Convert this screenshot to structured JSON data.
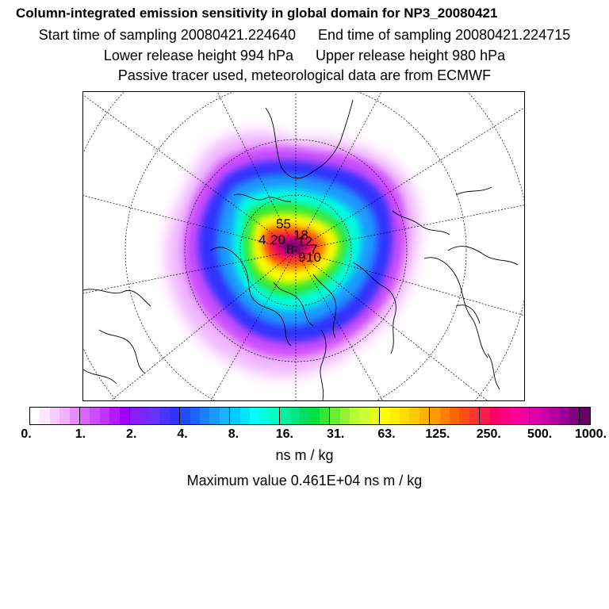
{
  "header": {
    "title": "Column-integrated emission sensitivity in global domain for NP3_20080421",
    "start_label": "Start time of sampling 20080421.224640",
    "end_label": "End time of sampling 20080421.224715",
    "lower_label": "Lower release height  994 hPa",
    "upper_label": "Upper release height  980 hPa",
    "tracer_label": "Passive tracer used, meteorological data are from ECMWF"
  },
  "map": {
    "projection": "polar-stereographic-north",
    "labels": [
      "55",
      "4",
      "20",
      "18",
      "12",
      "8",
      "9",
      "10",
      "7"
    ]
  },
  "colorbar": {
    "tick_labels": [
      "0.",
      "1.",
      "2.",
      "4.",
      "8.",
      "16.",
      "31.",
      "63.",
      "125.",
      "250.",
      "500.",
      "1000."
    ],
    "colors": [
      "#ffffff",
      "#ffe6ff",
      "#f5ccff",
      "#f0b3ff",
      "#e68cff",
      "#d966ff",
      "#cc4dff",
      "#c233ff",
      "#b31aff",
      "#a000ff",
      "#8f1aff",
      "#7a26ff",
      "#6633ff",
      "#4d33ff",
      "#3333ff",
      "#1f4dff",
      "#1a66ff",
      "#1a80ff",
      "#1a99ff",
      "#1ab3ff",
      "#00ccff",
      "#00e6ff",
      "#00ffff",
      "#00ffe0",
      "#00ffc0",
      "#00f0a0",
      "#00e680",
      "#00dd60",
      "#00e040",
      "#33e633",
      "#66ee33",
      "#99f033",
      "#b3ff33",
      "#ccff33",
      "#e6ff1a",
      "#ffff00",
      "#ffee00",
      "#ffdd00",
      "#ffcc00",
      "#ffb300",
      "#ff9900",
      "#ff8000",
      "#ff6600",
      "#ff4d1a",
      "#ff3333",
      "#ff1a4d",
      "#ff0066",
      "#ff0080",
      "#ff0099",
      "#f000a0",
      "#e000a8",
      "#cc00aa",
      "#b300a0",
      "#990099",
      "#800080",
      "#660066"
    ],
    "unit_label": "ns m / kg",
    "max_value_label": "Maximum value  0.461E+04 ns m / kg"
  }
}
